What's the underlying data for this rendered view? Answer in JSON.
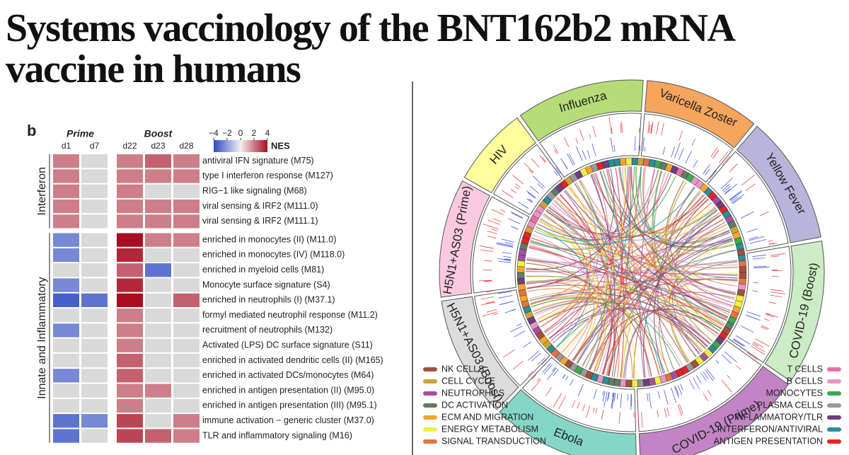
{
  "title_lines": [
    "Systems vaccinology of the BNT162b2 mRNA",
    "vaccine in humans"
  ],
  "heatmap": {
    "panel_label": "b",
    "column_groups": [
      {
        "label": "Prime",
        "columns": [
          "d1",
          "d7"
        ]
      },
      {
        "label": "Boost",
        "columns": [
          "d22",
          "d23",
          "d28"
        ]
      }
    ],
    "colorbar": {
      "label": "NES",
      "range": [
        -4,
        4
      ],
      "ticks": [
        {
          "value": -4,
          "label": "−4"
        },
        {
          "value": -2,
          "label": "−2"
        },
        0,
        2,
        4
      ]
    },
    "row_groups": [
      {
        "label": "Interferon",
        "rows": [
          {
            "label": "antiviral IFN signature (M75)",
            "values": [
              2,
              null,
              2,
              2.5,
              2
            ]
          },
          {
            "label": "type I interferon response (M127)",
            "values": [
              2,
              null,
              2,
              2,
              2
            ]
          },
          {
            "label": "RIG−1 like signaling (M68)",
            "values": [
              2,
              null,
              2,
              null,
              null
            ]
          },
          {
            "label": "viral sensing & IRF2 (M111.0)",
            "values": [
              2,
              null,
              2,
              2,
              2
            ]
          },
          {
            "label": "viral sensing & IRF2 (M111.1)",
            "values": [
              2,
              null,
              2,
              2,
              2
            ]
          }
        ]
      },
      {
        "label": "Innate and Inflammatory",
        "rows": [
          {
            "label": "enriched in monocytes (II) (M11.0)",
            "values": [
              -2.5,
              null,
              4,
              2,
              2
            ]
          },
          {
            "label": "enriched in monocytes (IV) (M118.0)",
            "values": [
              -2.5,
              null,
              3.5,
              null,
              null
            ]
          },
          {
            "label": "enriched in myeloid cells (M81)",
            "values": [
              null,
              null,
              2.5,
              -3,
              null
            ]
          },
          {
            "label": "Monocyte surface signature (S4)",
            "values": [
              -2.5,
              null,
              3.5,
              null,
              null
            ]
          },
          {
            "label": "enriched in neutrophils (I) (M37.1)",
            "values": [
              -3.5,
              -3,
              4,
              null,
              2.5
            ]
          },
          {
            "label": "formyl mediated neutrophil response (M11.2)",
            "values": [
              null,
              null,
              2,
              null,
              null
            ]
          },
          {
            "label": "recruitment of neutrophils (M132)",
            "values": [
              -2.5,
              null,
              2,
              null,
              null
            ]
          },
          {
            "label": "Activated (LPS) DC surface signature (S11)",
            "values": [
              null,
              null,
              2,
              null,
              null
            ]
          },
          {
            "label": "enriched in activated dendritic cells (II) (M165)",
            "values": [
              null,
              null,
              2.5,
              null,
              null
            ]
          },
          {
            "label": "enriched in activated DCs/monocytes (M64)",
            "values": [
              -2.5,
              null,
              2.5,
              null,
              null
            ]
          },
          {
            "label": "enriched in antigen presentation (II) (M95.0)",
            "values": [
              null,
              null,
              2,
              2,
              null
            ]
          },
          {
            "label": "enriched in antigen presentation (III) (M95.1)",
            "values": [
              null,
              null,
              2,
              null,
              null
            ]
          },
          {
            "label": "immune activation − generic cluster (M37.0)",
            "values": [
              -3,
              -2.5,
              3,
              null,
              2
            ]
          },
          {
            "label": "TLR and inflammatory signaling (M16)",
            "values": [
              -3,
              null,
              3,
              2.5,
              2
            ]
          }
        ]
      }
    ]
  },
  "circos": {
    "segments": [
      {
        "label": "Influenza",
        "color": "#b5dc77"
      },
      {
        "label": "Varicella Zoster",
        "color": "#f5a55c"
      },
      {
        "label": "Yellow Fever",
        "color": "#b9b4da"
      },
      {
        "label": "COVID-19 (Boost)",
        "color": "#cbecc4"
      },
      {
        "label": "COVID-19 (Prime)",
        "color": "#c284c4"
      },
      {
        "label": "Ebola",
        "color": "#84d6c6"
      },
      {
        "label": "H5N1+AS03 (Boost)",
        "color": "#dcdcdc"
      },
      {
        "label": "H5N1+AS03 (Prime)",
        "color": "#f9cadf"
      },
      {
        "label": "HIV",
        "color": "#ffff9e"
      }
    ],
    "legend_left": [
      {
        "label": "NK CELLS",
        "color": "#a0523a"
      },
      {
        "label": "CELL CYCLE",
        "color": "#c9a43c"
      },
      {
        "label": "NEUTROPHILS",
        "color": "#a5509f"
      },
      {
        "label": "DC ACTIVATION",
        "color": "#607a66"
      },
      {
        "label": "ECM AND MIGRATION",
        "color": "#f2a530"
      },
      {
        "label": "ENERGY METABOLISM",
        "color": "#f2ee45"
      },
      {
        "label": "SIGNAL TRANSDUCTION",
        "color": "#e07442"
      }
    ],
    "legend_right": [
      {
        "label": "T CELLS",
        "color": "#e8709e"
      },
      {
        "label": "B CELLS",
        "color": "#e695c4"
      },
      {
        "label": "MONOCYTES",
        "color": "#3ea850"
      },
      {
        "label": "PLASMA CELLS",
        "color": "#999999"
      },
      {
        "label": "INFLAMMATORY/TLR",
        "color": "#6e3e80"
      },
      {
        "label": "INTERFERON/ANTIVIRAL",
        "color": "#2e8c94"
      },
      {
        "label": "ANTIGEN PRESENTATION",
        "color": "#e02424"
      }
    ]
  }
}
